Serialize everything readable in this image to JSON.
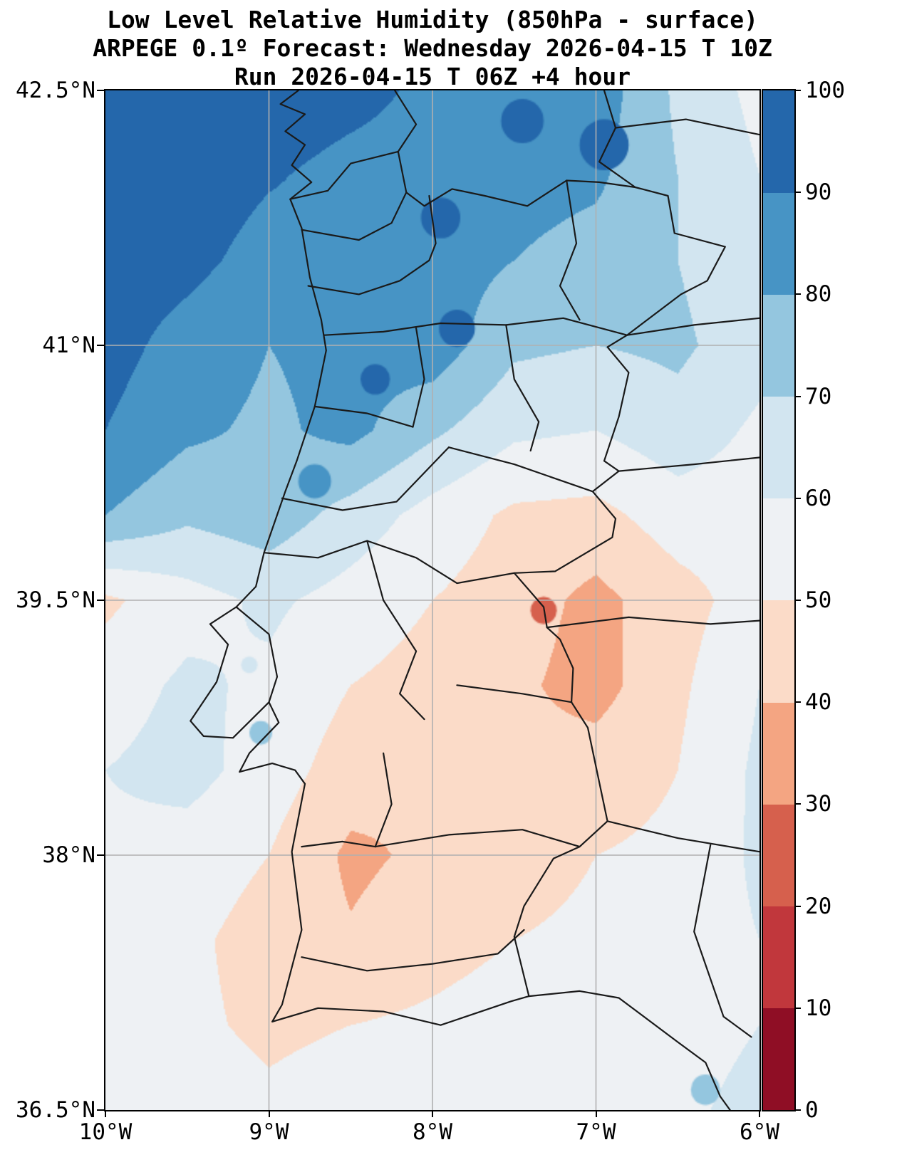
{
  "titles": {
    "line1": "Low Level Relative Humidity (850hPa - surface)",
    "line2": "ARPEGE 0.1º Forecast: Wednesday 2026-04-15 T 10Z",
    "line3": "Run 2026-04-15 T 06Z +4 hour"
  },
  "chart_data": {
    "type": "heatmap",
    "title": "Low Level Relative Humidity (850hPa - surface)",
    "subtitle": "ARPEGE 0.1º Forecast: Wednesday 2026-04-15 T 10Z",
    "run_line": "Run 2026-04-15 T 06Z +4 hour",
    "xlabel": "",
    "ylabel": "",
    "grid_on": true,
    "legend_position": "colorbar-right",
    "lon_range": [
      -10,
      -6
    ],
    "lat_range": [
      36.5,
      42.5
    ],
    "x_ticks": [
      {
        "value": -10,
        "label": "10°W"
      },
      {
        "value": -9,
        "label": "9°W"
      },
      {
        "value": -8,
        "label": "8°W"
      },
      {
        "value": -7,
        "label": "7°W"
      },
      {
        "value": -6,
        "label": "6°W"
      }
    ],
    "y_ticks": [
      {
        "value": 42.5,
        "label": "42.5°N"
      },
      {
        "value": 41,
        "label": "41°N"
      },
      {
        "value": 39.5,
        "label": "39.5°N"
      },
      {
        "value": 38,
        "label": "38°N"
      },
      {
        "value": 36.5,
        "label": "36.5°N"
      }
    ],
    "gridline_color": "#b0b0b0",
    "boundary_color": "#1a1a1a",
    "colorbar": {
      "levels": [
        0,
        10,
        20,
        30,
        40,
        50,
        60,
        70,
        80,
        90,
        100
      ],
      "tick_labels": [
        "0",
        "10",
        "20",
        "30",
        "40",
        "50",
        "60",
        "70",
        "80",
        "90",
        "100"
      ],
      "colors": [
        "#8f0e25",
        "#c1373c",
        "#d6604d",
        "#f4a582",
        "#fbdbc8",
        "#eef1f4",
        "#d2e5f0",
        "#94c6df",
        "#4794c5",
        "#2467ab"
      ],
      "outline_color": "#000000"
    },
    "grid": {
      "lons": [
        -10,
        -9.5,
        -9,
        -8.5,
        -8,
        -7.5,
        -7,
        -6.5,
        -6
      ],
      "lats": [
        42.5,
        42,
        41.5,
        41,
        40.5,
        40,
        39.5,
        39,
        38.5,
        38,
        37.5,
        37,
        36.5
      ],
      "values_pct": [
        [
          97,
          97,
          96,
          93,
          88,
          88,
          86,
          68,
          57
        ],
        [
          97,
          96,
          91,
          87,
          86,
          84,
          82,
          70,
          60
        ],
        [
          96,
          93,
          86,
          88,
          85,
          80,
          76,
          70,
          62
        ],
        [
          94,
          86,
          80,
          83,
          86,
          72,
          70,
          72,
          64
        ],
        [
          90,
          82,
          78,
          83,
          72,
          62,
          60,
          66,
          58
        ],
        [
          80,
          72,
          76,
          66,
          56,
          48,
          47,
          55,
          54
        ],
        [
          48,
          56,
          62,
          56,
          50,
          45,
          37,
          46,
          55
        ],
        [
          55,
          62,
          58,
          50,
          46,
          42,
          36,
          48,
          60
        ],
        [
          60,
          64,
          55,
          45,
          40,
          42,
          45,
          50,
          62
        ],
        [
          58,
          55,
          50,
          38,
          42,
          46,
          50,
          52,
          62
        ],
        [
          55,
          52,
          46,
          41,
          46,
          50,
          52,
          55,
          60
        ],
        [
          55,
          52,
          48,
          50,
          52,
          55,
          55,
          56,
          60
        ],
        [
          55,
          55,
          52,
          55,
          55,
          55,
          56,
          58,
          63
        ]
      ]
    },
    "spots": [
      {
        "lon": -7.32,
        "lat": 39.44,
        "value": 25,
        "radius_deg": 0.08
      },
      {
        "lon": -7.45,
        "lat": 42.32,
        "value": 93,
        "radius_deg": 0.13
      },
      {
        "lon": -6.95,
        "lat": 42.18,
        "value": 92,
        "radius_deg": 0.15
      },
      {
        "lon": -7.95,
        "lat": 41.75,
        "value": 93,
        "radius_deg": 0.12
      },
      {
        "lon": -7.85,
        "lat": 41.1,
        "value": 92,
        "radius_deg": 0.11
      },
      {
        "lon": -8.35,
        "lat": 40.8,
        "value": 92,
        "radius_deg": 0.09
      },
      {
        "lon": -8.72,
        "lat": 40.2,
        "value": 88,
        "radius_deg": 0.1
      },
      {
        "lon": -9.12,
        "lat": 39.12,
        "value": 65,
        "radius_deg": 0.05
      },
      {
        "lon": -9.05,
        "lat": 38.72,
        "value": 76,
        "radius_deg": 0.07
      },
      {
        "lon": -6.33,
        "lat": 36.62,
        "value": 75,
        "radius_deg": 0.09
      }
    ],
    "boundaries": {
      "coastline": [
        [
          -8.82,
          42.5
        ],
        [
          -8.93,
          42.42
        ],
        [
          -8.78,
          42.36
        ],
        [
          -8.9,
          42.26
        ],
        [
          -8.78,
          42.18
        ],
        [
          -8.86,
          42.06
        ],
        [
          -8.74,
          41.96
        ],
        [
          -8.87,
          41.86
        ],
        [
          -8.8,
          41.69
        ],
        [
          -8.75,
          41.4
        ],
        [
          -8.68,
          41.15
        ],
        [
          -8.65,
          40.97
        ],
        [
          -8.72,
          40.64
        ],
        [
          -8.83,
          40.32
        ],
        [
          -8.9,
          40.14
        ],
        [
          -9.03,
          39.78
        ],
        [
          -9.08,
          39.58
        ],
        [
          -9.2,
          39.46
        ],
        [
          -9.36,
          39.36
        ],
        [
          -9.25,
          39.24
        ],
        [
          -9.32,
          39.02
        ],
        [
          -9.48,
          38.79
        ],
        [
          -9.4,
          38.7
        ],
        [
          -9.22,
          38.69
        ],
        [
          -9.0,
          38.9
        ],
        [
          -8.94,
          38.78
        ],
        [
          -9.12,
          38.6
        ],
        [
          -9.18,
          38.49
        ],
        [
          -8.98,
          38.54
        ],
        [
          -8.84,
          38.5
        ],
        [
          -8.78,
          38.42
        ],
        [
          -8.86,
          38.02
        ],
        [
          -8.8,
          37.56
        ],
        [
          -8.92,
          37.12
        ],
        [
          -8.98,
          37.02
        ],
        [
          -8.7,
          37.1
        ],
        [
          -8.3,
          37.08
        ],
        [
          -7.95,
          37.0
        ],
        [
          -7.52,
          37.14
        ],
        [
          -7.41,
          37.17
        ],
        [
          -7.1,
          37.2
        ],
        [
          -6.86,
          37.16
        ],
        [
          -6.5,
          36.9
        ],
        [
          -6.33,
          36.78
        ],
        [
          -6.24,
          36.58
        ],
        [
          -6.18,
          36.5
        ]
      ],
      "pt_es_border": [
        [
          -8.87,
          41.86
        ],
        [
          -8.64,
          41.91
        ],
        [
          -8.5,
          42.07
        ],
        [
          -8.21,
          42.14
        ],
        [
          -8.16,
          41.9
        ],
        [
          -8.05,
          41.82
        ],
        [
          -7.88,
          41.92
        ],
        [
          -7.68,
          41.88
        ],
        [
          -7.42,
          41.82
        ],
        [
          -7.18,
          41.97
        ],
        [
          -6.98,
          41.96
        ],
        [
          -6.76,
          41.93
        ],
        [
          -6.56,
          41.88
        ],
        [
          -6.52,
          41.66
        ],
        [
          -6.21,
          41.58
        ],
        [
          -6.32,
          41.38
        ],
        [
          -6.48,
          41.3
        ],
        [
          -6.81,
          41.06
        ],
        [
          -6.93,
          40.99
        ],
        [
          -6.8,
          40.84
        ],
        [
          -6.86,
          40.58
        ],
        [
          -6.95,
          40.32
        ],
        [
          -6.86,
          40.26
        ],
        [
          -7.02,
          40.14
        ],
        [
          -6.88,
          39.98
        ],
        [
          -6.9,
          39.87
        ],
        [
          -7.25,
          39.67
        ],
        [
          -7.5,
          39.66
        ],
        [
          -7.32,
          39.46
        ],
        [
          -7.3,
          39.34
        ],
        [
          -7.22,
          39.27
        ],
        [
          -7.14,
          39.1
        ],
        [
          -7.15,
          38.9
        ],
        [
          -7.05,
          38.75
        ],
        [
          -6.93,
          38.2
        ],
        [
          -7.1,
          38.05
        ],
        [
          -7.26,
          37.98
        ],
        [
          -7.44,
          37.7
        ],
        [
          -7.5,
          37.52
        ],
        [
          -7.41,
          37.17
        ]
      ],
      "internal": [
        [
          [
            -8.23,
            42.5
          ],
          [
            -8.1,
            42.3
          ],
          [
            -8.21,
            42.14
          ]
        ],
        [
          [
            -6.95,
            42.5
          ],
          [
            -6.88,
            42.28
          ],
          [
            -6.98,
            42.08
          ],
          [
            -6.76,
            41.93
          ]
        ],
        [
          [
            -6.88,
            42.28
          ],
          [
            -6.45,
            42.33
          ],
          [
            -6.0,
            42.24
          ]
        ],
        [
          [
            -6.81,
            41.06
          ],
          [
            -6.4,
            41.12
          ],
          [
            -6.0,
            41.16
          ]
        ],
        [
          [
            -6.86,
            40.26
          ],
          [
            -6.4,
            40.3
          ],
          [
            -6.0,
            40.34
          ]
        ],
        [
          [
            -7.3,
            39.34
          ],
          [
            -6.8,
            39.4
          ],
          [
            -6.3,
            39.36
          ],
          [
            -6.0,
            39.38
          ]
        ],
        [
          [
            -6.93,
            38.2
          ],
          [
            -6.5,
            38.1
          ],
          [
            -6.0,
            38.02
          ]
        ],
        [
          [
            -6.3,
            38.06
          ],
          [
            -6.4,
            37.55
          ],
          [
            -6.22,
            37.05
          ]
        ],
        [
          [
            -6.22,
            37.05
          ],
          [
            -6.05,
            36.93
          ]
        ],
        [
          [
            -8.8,
            41.68
          ],
          [
            -8.45,
            41.62
          ],
          [
            -8.25,
            41.72
          ],
          [
            -8.16,
            41.9
          ]
        ],
        [
          [
            -8.76,
            41.35
          ],
          [
            -8.45,
            41.3
          ],
          [
            -8.2,
            41.38
          ],
          [
            -8.02,
            41.5
          ],
          [
            -7.98,
            41.6
          ],
          [
            -8.02,
            41.88
          ]
        ],
        [
          [
            -7.18,
            41.97
          ],
          [
            -7.12,
            41.6
          ],
          [
            -7.22,
            41.35
          ],
          [
            -7.1,
            41.15
          ]
        ],
        [
          [
            -8.66,
            41.06
          ],
          [
            -8.3,
            41.08
          ],
          [
            -7.95,
            41.13
          ],
          [
            -7.55,
            41.12
          ],
          [
            -7.2,
            41.16
          ],
          [
            -6.81,
            41.06
          ]
        ],
        [
          [
            -8.1,
            41.1
          ],
          [
            -8.05,
            40.8
          ],
          [
            -8.12,
            40.52
          ]
        ],
        [
          [
            -8.72,
            40.64
          ],
          [
            -8.4,
            40.6
          ],
          [
            -8.12,
            40.52
          ]
        ],
        [
          [
            -7.55,
            41.12
          ],
          [
            -7.5,
            40.8
          ],
          [
            -7.35,
            40.55
          ],
          [
            -7.4,
            40.38
          ]
        ],
        [
          [
            -7.9,
            40.4
          ],
          [
            -7.5,
            40.3
          ],
          [
            -7.02,
            40.14
          ]
        ],
        [
          [
            -8.92,
            40.1
          ],
          [
            -8.55,
            40.03
          ],
          [
            -8.22,
            40.08
          ],
          [
            -7.9,
            40.4
          ]
        ],
        [
          [
            -9.03,
            39.78
          ],
          [
            -8.7,
            39.75
          ],
          [
            -8.4,
            39.85
          ],
          [
            -8.1,
            39.75
          ],
          [
            -7.85,
            39.6
          ],
          [
            -7.5,
            39.66
          ]
        ],
        [
          [
            -9.2,
            39.46
          ],
          [
            -9.0,
            39.3
          ],
          [
            -8.95,
            39.05
          ],
          [
            -9.0,
            38.9
          ]
        ],
        [
          [
            -8.4,
            39.85
          ],
          [
            -8.3,
            39.5
          ],
          [
            -8.1,
            39.2
          ],
          [
            -8.2,
            38.95
          ],
          [
            -8.05,
            38.8
          ]
        ],
        [
          [
            -7.85,
            39.0
          ],
          [
            -7.45,
            38.95
          ],
          [
            -7.15,
            38.9
          ]
        ],
        [
          [
            -8.3,
            38.6
          ],
          [
            -8.25,
            38.3
          ],
          [
            -8.35,
            38.05
          ]
        ],
        [
          [
            -8.35,
            38.05
          ],
          [
            -7.9,
            38.12
          ],
          [
            -7.45,
            38.15
          ],
          [
            -7.1,
            38.05
          ]
        ],
        [
          [
            -8.8,
            38.05
          ],
          [
            -8.55,
            38.08
          ],
          [
            -8.35,
            38.05
          ]
        ],
        [
          [
            -8.8,
            37.4
          ],
          [
            -8.4,
            37.32
          ],
          [
            -8.0,
            37.36
          ],
          [
            -7.6,
            37.42
          ],
          [
            -7.44,
            37.56
          ]
        ]
      ]
    }
  }
}
